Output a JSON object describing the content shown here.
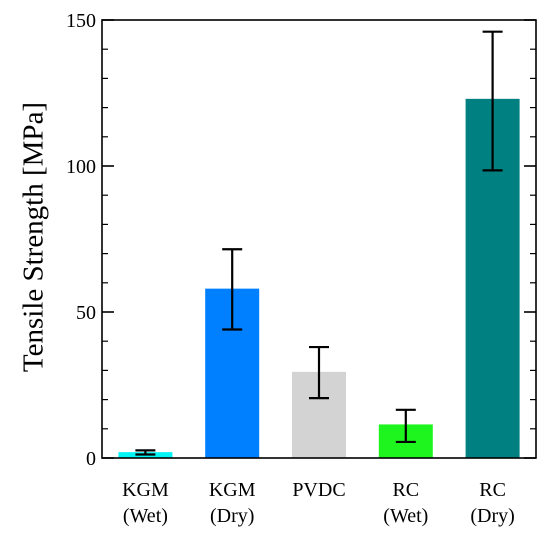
{
  "chart_data": {
    "type": "bar",
    "ylabel": "Tensile Strength [MPa]",
    "ylim": [
      0,
      150
    ],
    "yticks": [
      0,
      50,
      100,
      150
    ],
    "grid": false,
    "categories": [
      {
        "line1": "KGM",
        "line2": "(Wet)"
      },
      {
        "line1": "KGM",
        "line2": "(Dry)"
      },
      {
        "line1": "PVDC",
        "line2": ""
      },
      {
        "line1": "RC",
        "line2": "(Wet)"
      },
      {
        "line1": "RC",
        "line2": "(Dry)"
      }
    ],
    "values": [
      2,
      58,
      29.5,
      11.5,
      123
    ],
    "error_low": [
      1.2,
      44,
      20.5,
      5.5,
      98.5
    ],
    "error_high": [
      2.6,
      71.5,
      38,
      16.5,
      146
    ],
    "colors": [
      "#00f5f5",
      "#0080ff",
      "#d3d3d3",
      "#1ef51e",
      "#008080"
    ]
  }
}
